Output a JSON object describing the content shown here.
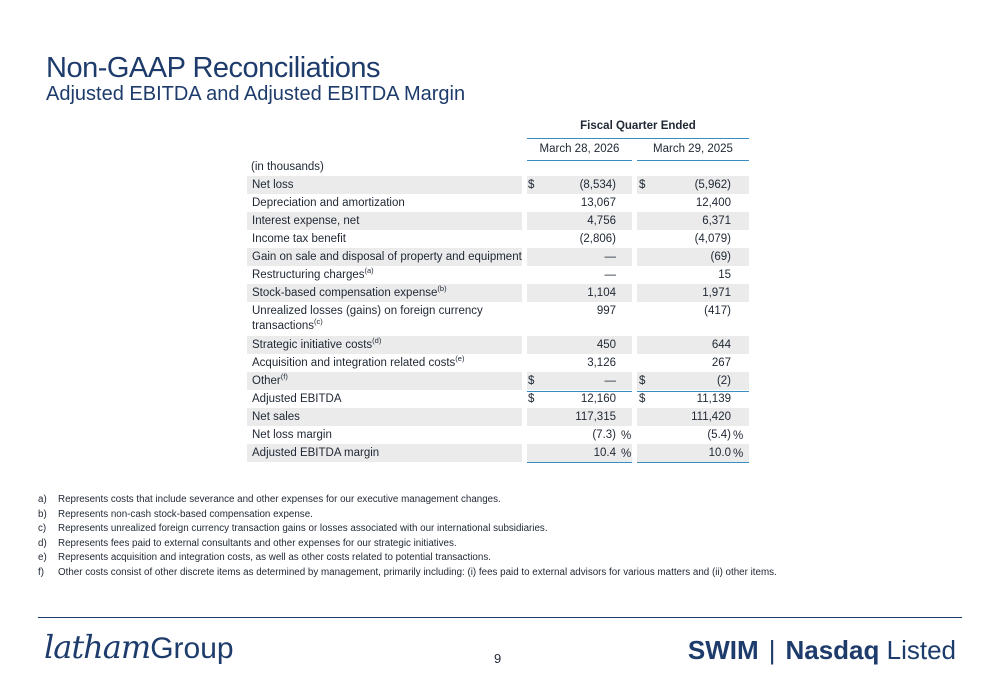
{
  "title": "Non-GAAP Reconciliations",
  "subtitle": "Adjusted EBITDA and Adjusted EBITDA Margin",
  "table": {
    "group_header": "Fiscal Quarter Ended",
    "col1_header": "March 28, 2026",
    "col2_header": "March 29, 2025",
    "units": "(in thousands)",
    "rows": [
      {
        "label": "Net loss",
        "sup": "",
        "dollar": "$",
        "v1": "(8,534)",
        "v2": "(5,962)"
      },
      {
        "label": "Depreciation and amortization",
        "sup": "",
        "dollar": "",
        "v1": "13,067",
        "v2": "12,400"
      },
      {
        "label": "Interest expense, net",
        "sup": "",
        "dollar": "",
        "v1": "4,756",
        "v2": "6,371"
      },
      {
        "label": "Income tax benefit",
        "sup": "",
        "dollar": "",
        "v1": "(2,806)",
        "v2": "(4,079)"
      },
      {
        "label": "Gain on sale and disposal of property and equipment",
        "sup": "",
        "dollar": "",
        "v1": "—",
        "v2": "(69)"
      },
      {
        "label": "Restructuring charges",
        "sup": "(a)",
        "dollar": "",
        "v1": "—",
        "v2": "15"
      },
      {
        "label": "Stock-based compensation expense",
        "sup": "(b)",
        "dollar": "",
        "v1": "1,104",
        "v2": "1,971"
      },
      {
        "label": "Unrealized losses (gains) on foreign currency transactions",
        "sup": "(c)",
        "dollar": "",
        "v1": "997",
        "v2": "(417)"
      },
      {
        "label": "Strategic initiative costs",
        "sup": "(d)",
        "dollar": "",
        "v1": "450",
        "v2": "644"
      },
      {
        "label": "Acquisition and integration related costs",
        "sup": "(e)",
        "dollar": "",
        "v1": "3,126",
        "v2": "267"
      },
      {
        "label": "Other",
        "sup": "(f)",
        "dollar": "$",
        "v1": "—",
        "v2": "(2)"
      },
      {
        "label": "Adjusted EBITDA",
        "sup": "",
        "dollar": "$",
        "v1": "12,160",
        "v2": "11,139"
      },
      {
        "label": "Net sales",
        "sup": "",
        "dollar": "",
        "v1": "117,315",
        "v2": "111,420"
      },
      {
        "label": "Net loss margin",
        "sup": "",
        "dollar": "",
        "v1": "(7.3)",
        "v2": "(5.4)",
        "pct": "%"
      },
      {
        "label": "Adjusted EBITDA margin",
        "sup": "",
        "dollar": "",
        "v1": "10.4",
        "v2": "10.0",
        "pct": "%"
      }
    ]
  },
  "footnotes": [
    {
      "key": "a)",
      "text": "Represents costs that include severance and other expenses for our executive management changes."
    },
    {
      "key": "b)",
      "text": "Represents non-cash stock-based compensation expense."
    },
    {
      "key": "c)",
      "text": "Represents unrealized foreign currency transaction gains or losses associated with our international subsidiaries."
    },
    {
      "key": "d)",
      "text": "Represents fees paid to external consultants and other expenses for our strategic initiatives."
    },
    {
      "key": "e)",
      "text": "Represents acquisition and integration costs, as well as other costs related to potential transactions."
    },
    {
      "key": "f)",
      "text": "Other costs consist of other discrete items as determined by management, primarily including: (i) fees paid to external advisors for various matters and (ii) other items."
    }
  ],
  "footer": {
    "logo_script": "latham",
    "logo_word": "Group",
    "page_number": "9",
    "ticker": "SWIM",
    "separator": "|",
    "exchange_bold": "Nasdaq",
    "exchange_rest": "Listed"
  }
}
